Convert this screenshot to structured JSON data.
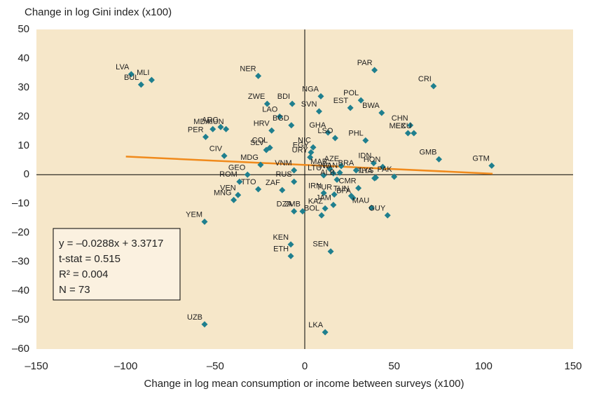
{
  "chart_data": {
    "type": "scatter",
    "y_label": "Change in log Gini index (x100)",
    "x_label": "Change in log mean consumption or income between surveys (x100)",
    "xlim": [
      -150,
      150
    ],
    "ylim": [
      -60,
      50
    ],
    "xticks": [
      {
        "value": -150,
        "label": "–150"
      },
      {
        "value": -100,
        "label": "–100"
      },
      {
        "value": -50,
        "label": "–50"
      },
      0,
      50,
      100,
      150
    ],
    "yticks": [
      50,
      40,
      30,
      20,
      10,
      0,
      {
        "value": -10,
        "label": "–10"
      },
      {
        "value": -20,
        "label": "–20"
      },
      {
        "value": -30,
        "label": "–30"
      },
      {
        "value": -40,
        "label": "–40"
      },
      {
        "value": -50,
        "label": "–50"
      },
      {
        "value": -60,
        "label": "–60"
      }
    ],
    "color": "#1f7f8e",
    "background": "#f6e7c9",
    "labels": [
      "LVA",
      "BUL",
      "MLI",
      "NER",
      "PAR",
      "CRI",
      "ZWE",
      "BDI",
      "NGA",
      "POL",
      "EST",
      "SVN",
      "BWA",
      "LAO",
      "HRV",
      "BGD",
      "CHN",
      "MEX",
      "ECU",
      "ARG",
      "HUN",
      "MDA",
      "PER",
      "GHA",
      "LSO",
      "PHL",
      "COL",
      "SLV",
      "NIC",
      "EGY",
      "URY",
      "GMB",
      "GTM",
      "CIV",
      "MDG",
      "GEO",
      "VNM",
      "MAR",
      "AZE",
      "BRA",
      "IDN",
      "HON",
      "PAN",
      "IND",
      "LTU",
      "LYS",
      "PAK",
      "ALB",
      "CMR",
      "THA",
      "IRN",
      "TUR",
      "TUN",
      "BFA",
      "JAM",
      "KAZ",
      "BOL",
      "MAU",
      "GUY",
      "ROM",
      "RUS",
      "ZAF",
      "TTO",
      "VEN",
      "MNG",
      "DZA",
      "ZMB",
      "YEM",
      "KEN",
      "ETH",
      "SEN",
      "UZB",
      "LKA"
    ],
    "x": [
      -97,
      -91.5,
      -85.6,
      -26,
      39,
      72,
      -21,
      -7,
      9,
      31.4,
      25.5,
      8,
      43,
      -14,
      -18.5,
      -7.5,
      59,
      57.7,
      61,
      -47,
      -44,
      -51.4,
      -55.4,
      13,
      17,
      34,
      -19.5,
      -21.5,
      4.7,
      3.5,
      3,
      75,
      104.5,
      -45,
      -24.7,
      -32,
      -6,
      14,
      20.4,
      28.7,
      38.5,
      43.6,
      19.6,
      16,
      10.6,
      39.7,
      50,
      18,
      30,
      39,
      10.6,
      16.5,
      26,
      27,
      16,
      11.4,
      9.4,
      37.3,
      46.3,
      -36.5,
      -6,
      -12.6,
      -26,
      -37.3,
      -39.7,
      -6,
      -1.2,
      -56,
      -7.8,
      -7.8,
      14.5,
      -56,
      11.4
    ],
    "values": [
      34.6,
      31,
      32.6,
      34,
      36,
      30.5,
      24.4,
      24.4,
      27,
      25.6,
      23,
      21.8,
      21.3,
      20,
      15.2,
      17,
      17,
      14.3,
      14.3,
      16.4,
      15.7,
      15.7,
      13,
      14.5,
      12.6,
      11.8,
      9.3,
      8.5,
      9.4,
      7.7,
      6,
      5.3,
      3.1,
      6.5,
      3.4,
      0,
      1.5,
      2,
      3,
      1.5,
      4,
      2.7,
      0.7,
      0.5,
      -0.2,
      -1,
      -0.7,
      -1.7,
      -4.6,
      -1.2,
      -6.3,
      -6.8,
      -7.3,
      -8,
      -10.4,
      -11.6,
      -14,
      -11.4,
      -14,
      -2.4,
      -2.4,
      -5.3,
      -5,
      -7,
      -8.7,
      -12.6,
      -12.6,
      -16.2,
      -24,
      -28,
      -26.4,
      -51.5,
      -54.2
    ],
    "trend": {
      "x": [
        -100,
        105
      ],
      "values": [
        6.25,
        0.35
      ],
      "color": "#f08a1c"
    },
    "stats": [
      "y = –0.0288x + 3.3717",
      "t-stat = 0.515",
      "R² = 0.004",
      "N = 73"
    ]
  }
}
